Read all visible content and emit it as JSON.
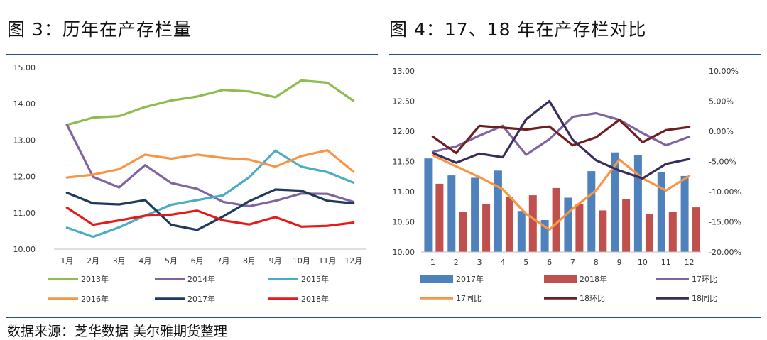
{
  "figure3_title": "图 3：历年在产存栏量",
  "figure4_title": "图 4：17、18 年在产存栏对比",
  "source": "数据来源：芝华数据 美尔雅期货整理",
  "chart_data": [
    {
      "type": "line",
      "categories": [
        "1月",
        "2月",
        "3月",
        "4月",
        "5月",
        "6月",
        "7月",
        "8月",
        "9月",
        "10月",
        "11月",
        "12月"
      ],
      "y_ticks": [
        "10.00",
        "11.00",
        "12.00",
        "13.00",
        "14.00",
        "15.00"
      ],
      "ylim": [
        10,
        15
      ],
      "grid": false,
      "legend_position": "bottom",
      "series": [
        {
          "name": "2013年",
          "color": "#8fbc4f",
          "values": [
            13.42,
            13.62,
            13.66,
            13.91,
            14.09,
            14.2,
            14.38,
            14.34,
            14.18,
            14.64,
            14.58,
            14.08
          ]
        },
        {
          "name": "2014年",
          "color": "#8064a2",
          "values": [
            13.42,
            11.99,
            11.7,
            12.31,
            11.82,
            11.66,
            11.3,
            11.18,
            11.33,
            11.53,
            11.52,
            11.3
          ]
        },
        {
          "name": "2015年",
          "color": "#4bacc6",
          "values": [
            10.59,
            10.34,
            10.6,
            10.92,
            11.22,
            11.35,
            11.48,
            11.98,
            12.71,
            12.27,
            12.12,
            11.83
          ]
        },
        {
          "name": "2016年",
          "color": "#f79646",
          "values": [
            11.97,
            12.05,
            12.2,
            12.6,
            12.49,
            12.6,
            12.51,
            12.46,
            12.27,
            12.56,
            12.72,
            12.13
          ]
        },
        {
          "name": "2017年",
          "color": "#1f3b5c",
          "values": [
            11.55,
            11.26,
            11.23,
            11.35,
            10.67,
            10.53,
            10.9,
            11.32,
            11.64,
            11.61,
            11.33,
            11.26
          ]
        },
        {
          "name": "2018年",
          "color": "#e8191b",
          "values": [
            11.14,
            10.67,
            10.79,
            10.92,
            10.95,
            11.06,
            10.79,
            10.68,
            10.88,
            10.62,
            10.64,
            10.73
          ]
        }
      ]
    },
    {
      "type": "bar",
      "categories": [
        "1",
        "2",
        "3",
        "4",
        "5",
        "6",
        "7",
        "8",
        "9",
        "10",
        "11",
        "12"
      ],
      "y_ticks": [
        "10.00",
        "10.50",
        "11.00",
        "11.50",
        "12.00",
        "12.50",
        "13.00"
      ],
      "ylim": [
        10,
        13
      ],
      "y2_ticks": [
        "-20.00%",
        "-15.00%",
        "-10.00%",
        "-5.00%",
        "0.00%",
        "5.00%",
        "10.00%"
      ],
      "y2lim": [
        -20,
        10
      ],
      "grid": false,
      "legend_position": "bottom",
      "series": [
        {
          "name": "2017年",
          "kind": "bar",
          "color": "#4f81bd",
          "values": [
            11.55,
            11.27,
            11.23,
            11.35,
            10.68,
            10.53,
            10.9,
            11.34,
            11.65,
            11.61,
            11.32,
            11.26
          ]
        },
        {
          "name": "2018年",
          "kind": "bar",
          "color": "#c0504d",
          "values": [
            11.13,
            10.66,
            10.79,
            10.91,
            10.94,
            11.06,
            10.79,
            10.69,
            10.88,
            10.63,
            10.66,
            10.74
          ]
        },
        {
          "name": "17环比",
          "kind": "line",
          "axis": "right",
          "color": "#8064a2",
          "values": [
            -3.4,
            -2.5,
            -0.7,
            0.9,
            -3.9,
            -1.3,
            2.4,
            3.0,
            1.9,
            -0.3,
            -2.3,
            -0.9
          ]
        },
        {
          "name": "17同比",
          "kind": "line",
          "axis": "right",
          "color": "#f79646",
          "values": [
            -4.0,
            -5.8,
            -7.6,
            -9.6,
            -13.7,
            -16.3,
            -12.8,
            -9.8,
            -4.7,
            -7.8,
            -9.8,
            -7.4
          ]
        },
        {
          "name": "18环比",
          "kind": "line",
          "axis": "right",
          "color": "#6e1f21",
          "values": [
            -0.9,
            -3.6,
            0.9,
            0.6,
            0.3,
            0.8,
            -2.3,
            -1.0,
            1.9,
            -1.8,
            0.2,
            0.7
          ]
        },
        {
          "name": "18同比",
          "kind": "line",
          "axis": "right",
          "color": "#3b2c5e",
          "values": [
            -3.6,
            -5.2,
            -3.7,
            -4.3,
            2.0,
            5.0,
            -1.4,
            -4.8,
            -6.5,
            -7.8,
            -5.4,
            -4.6
          ]
        }
      ]
    }
  ]
}
